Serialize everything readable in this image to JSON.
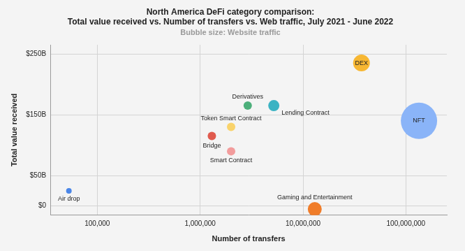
{
  "chart_data": {
    "type": "bubble",
    "title": [
      "North America DeFi category comparison:",
      "Total value received vs. Number of transfers vs. Web traffic, July 2021 - June 2022"
    ],
    "subtitle": "Bubble size: Website traffic",
    "x_label": "Number of transfers",
    "y_label": "Total value received",
    "log": "x",
    "grid": true,
    "categories": [
      "Air drop",
      "Bridge",
      "Smart Contract",
      "Token Smart Contract",
      "Derivatives",
      "Lending Contract",
      "DEX",
      "NFT",
      "Gaming and Entertainment"
    ],
    "x": [
      53000,
      1300000,
      2000000,
      2000000,
      2900000,
      5200000,
      37000000,
      134000000,
      13000000
    ],
    "values": [
      25,
      115,
      90,
      130,
      165,
      165,
      235,
      140,
      -5
    ],
    "sizes": [
      16,
      36,
      36,
      36,
      36,
      64,
      144,
      676,
      100
    ],
    "colors": [
      "#4a86e8",
      "#e05a4e",
      "#f29c9c",
      "#f9d36b",
      "#4caf7a",
      "#3bb3c3",
      "#f7b733",
      "#8ab4f8",
      "#f07d2a"
    ],
    "xlim": [
      35000,
      250000000
    ],
    "ylim": [
      -15,
      265
    ],
    "xticks": [
      {
        "value": 100000,
        "label": "100,000"
      },
      {
        "value": 1000000,
        "label": "1,000,000"
      },
      {
        "value": 10000000,
        "label": "10,000,000"
      },
      {
        "value": 100000000,
        "label": "100,000,000"
      }
    ],
    "yticks": [
      {
        "value": 0,
        "label": "$0"
      },
      {
        "value": 50,
        "label": "$50B"
      },
      {
        "value": 150,
        "label": "$150B"
      },
      {
        "value": 250,
        "label": "$250B"
      }
    ]
  }
}
